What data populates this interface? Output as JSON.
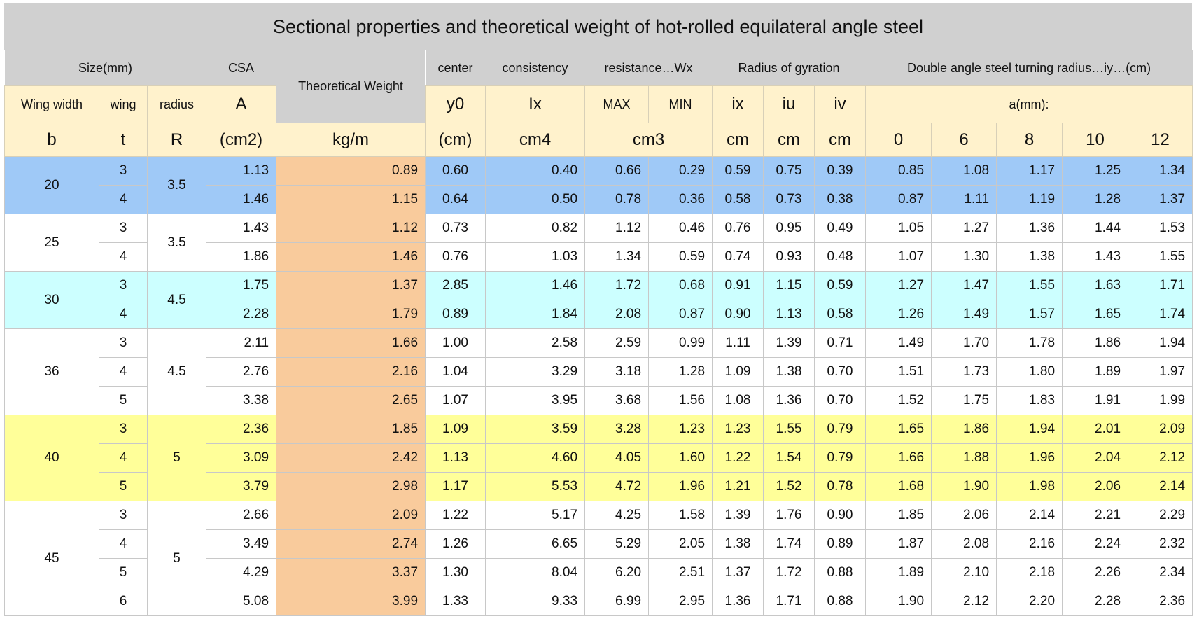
{
  "title": "Sectional properties and theoretical weight of hot-rolled equilateral angle steel",
  "groups": {
    "size": "Size(mm)",
    "csa": "CSA",
    "weight": "Theoretical Weight",
    "center": "center",
    "consistency": "consistency",
    "resistance": "resistance…Wx",
    "gyration": "Radius of gyration",
    "double": "Double angle steel turning radius…iy…(cm)"
  },
  "header1": {
    "wing_width": "Wing width",
    "wing": "wing",
    "radius": "radius",
    "A": "A",
    "y0": "y0",
    "Ix": "Ix",
    "max": "MAX",
    "min": "MIN",
    "ix": "ix",
    "iu": "iu",
    "iv": "iv",
    "a_mm": "a(mm):"
  },
  "header2": {
    "b": "b",
    "t": "t",
    "R": "R",
    "cm2": "(cm2)",
    "kgm": "kg/m",
    "cm": "(cm)",
    "cm4": "cm4",
    "cm3": "cm3",
    "ix": "cm",
    "iu": "cm",
    "iv": "cm",
    "a0": "0",
    "a6": "6",
    "a8": "8",
    "a10": "10",
    "a12": "12"
  },
  "colors": {
    "blue": "#9fc9f7",
    "cyan": "#ccffff",
    "white": "#ffffff",
    "yellow": "#ffff99",
    "header": "#fff2cc",
    "weight": "#f9cb9c",
    "title": "#d0d0d0"
  },
  "rows_groups": [
    {
      "b": "20",
      "R": "3.5",
      "color": "blue",
      "rows": [
        [
          "3",
          "1.13",
          "0.89",
          "0.60",
          "0.40",
          "0.66",
          "0.29",
          "0.59",
          "0.75",
          "0.39",
          "0.85",
          "1.08",
          "1.17",
          "1.25",
          "1.34"
        ],
        [
          "4",
          "1.46",
          "1.15",
          "0.64",
          "0.50",
          "0.78",
          "0.36",
          "0.58",
          "0.73",
          "0.38",
          "0.87",
          "1.11",
          "1.19",
          "1.28",
          "1.37"
        ]
      ]
    },
    {
      "b": "25",
      "R": "3.5",
      "color": "white",
      "rows": [
        [
          "3",
          "1.43",
          "1.12",
          "0.73",
          "0.82",
          "1.12",
          "0.46",
          "0.76",
          "0.95",
          "0.49",
          "1.05",
          "1.27",
          "1.36",
          "1.44",
          "1.53"
        ],
        [
          "4",
          "1.86",
          "1.46",
          "0.76",
          "1.03",
          "1.34",
          "0.59",
          "0.74",
          "0.93",
          "0.48",
          "1.07",
          "1.30",
          "1.38",
          "1.43",
          "1.55"
        ]
      ]
    },
    {
      "b": "30",
      "R": "4.5",
      "color": "cyan",
      "rows": [
        [
          "3",
          "1.75",
          "1.37",
          "2.85",
          "1.46",
          "1.72",
          "0.68",
          "0.91",
          "1.15",
          "0.59",
          "1.27",
          "1.47",
          "1.55",
          "1.63",
          "1.71"
        ],
        [
          "4",
          "2.28",
          "1.79",
          "0.89",
          "1.84",
          "2.08",
          "0.87",
          "0.90",
          "1.13",
          "0.58",
          "1.26",
          "1.49",
          "1.57",
          "1.65",
          "1.74"
        ]
      ]
    },
    {
      "b": "36",
      "R": "4.5",
      "color": "white",
      "rows": [
        [
          "3",
          "2.11",
          "1.66",
          "1.00",
          "2.58",
          "2.59",
          "0.99",
          "1.11",
          "1.39",
          "0.71",
          "1.49",
          "1.70",
          "1.78",
          "1.86",
          "1.94"
        ],
        [
          "4",
          "2.76",
          "2.16",
          "1.04",
          "3.29",
          "3.18",
          "1.28",
          "1.09",
          "1.38",
          "0.70",
          "1.51",
          "1.73",
          "1.80",
          "1.89",
          "1.97"
        ],
        [
          "5",
          "3.38",
          "2.65",
          "1.07",
          "3.95",
          "3.68",
          "1.56",
          "1.08",
          "1.36",
          "0.70",
          "1.52",
          "1.75",
          "1.83",
          "1.91",
          "1.99"
        ]
      ]
    },
    {
      "b": "40",
      "R": "5",
      "color": "yellow",
      "rows": [
        [
          "3",
          "2.36",
          "1.85",
          "1.09",
          "3.59",
          "3.28",
          "1.23",
          "1.23",
          "1.55",
          "0.79",
          "1.65",
          "1.86",
          "1.94",
          "2.01",
          "2.09"
        ],
        [
          "4",
          "3.09",
          "2.42",
          "1.13",
          "4.60",
          "4.05",
          "1.60",
          "1.22",
          "1.54",
          "0.79",
          "1.66",
          "1.88",
          "1.96",
          "2.04",
          "2.12"
        ],
        [
          "5",
          "3.79",
          "2.98",
          "1.17",
          "5.53",
          "4.72",
          "1.96",
          "1.21",
          "1.52",
          "0.78",
          "1.68",
          "1.90",
          "1.98",
          "2.06",
          "2.14"
        ]
      ]
    },
    {
      "b": "45",
      "R": "5",
      "color": "white",
      "rows": [
        [
          "3",
          "2.66",
          "2.09",
          "1.22",
          "5.17",
          "4.25",
          "1.58",
          "1.39",
          "1.76",
          "0.90",
          "1.85",
          "2.06",
          "2.14",
          "2.21",
          "2.29"
        ],
        [
          "4",
          "3.49",
          "2.74",
          "1.26",
          "6.65",
          "5.29",
          "2.05",
          "1.38",
          "1.74",
          "0.89",
          "1.87",
          "2.08",
          "2.16",
          "2.24",
          "2.32"
        ],
        [
          "5",
          "4.29",
          "3.37",
          "1.30",
          "8.04",
          "6.20",
          "2.51",
          "1.37",
          "1.72",
          "0.88",
          "1.89",
          "2.10",
          "2.18",
          "2.26",
          "2.34"
        ],
        [
          "6",
          "5.08",
          "3.99",
          "1.33",
          "9.33",
          "6.99",
          "2.95",
          "1.36",
          "1.71",
          "0.88",
          "1.90",
          "2.12",
          "2.20",
          "2.28",
          "2.36"
        ]
      ]
    }
  ]
}
